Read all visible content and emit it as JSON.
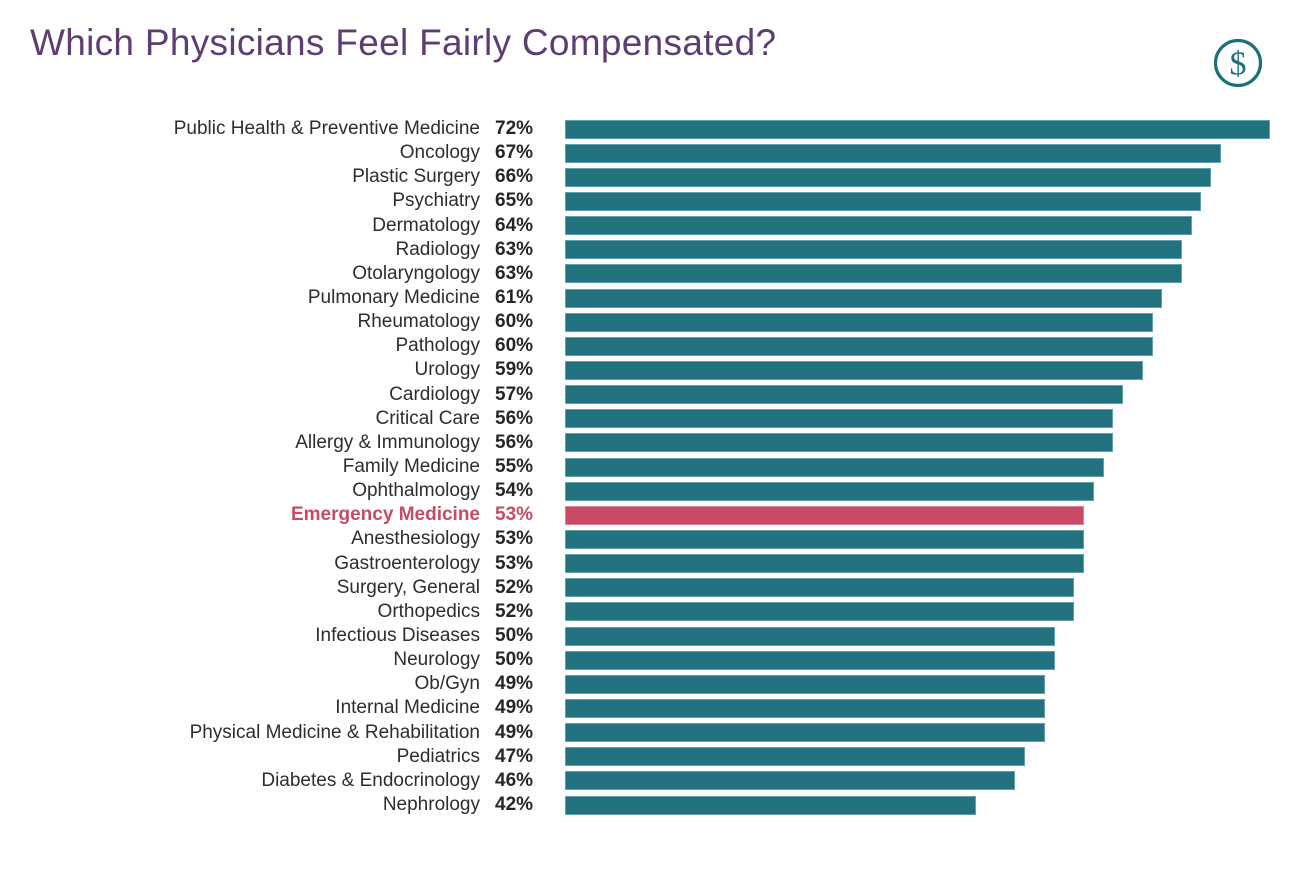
{
  "page": {
    "background": "#ffffff"
  },
  "header": {
    "title": "Which Physicians Feel Fairly Compensated?",
    "title_color": "#5e3d72",
    "icon": "dollar-circle-icon",
    "icon_glyph": "$",
    "icon_color": "#1d6f7b"
  },
  "chart_data": {
    "type": "bar",
    "orientation": "horizontal",
    "title": "Which Physicians Feel Fairly Compensated?",
    "xlabel": "",
    "ylabel": "",
    "xlim": [
      0,
      72
    ],
    "grid": false,
    "legend": false,
    "bar_color": "#22717e",
    "highlight_color": "#c84a64",
    "label_color": "#2d2d2d",
    "highlight_category": "Emergency Medicine",
    "highlight_index": 16,
    "categories": [
      "Public Health & Preventive Medicine",
      "Oncology",
      "Plastic Surgery",
      "Psychiatry",
      "Dermatology",
      "Radiology",
      "Otolaryngology",
      "Pulmonary Medicine",
      "Rheumatology",
      "Pathology",
      "Urology",
      "Cardiology",
      "Critical Care",
      "Allergy & Immunology",
      "Family Medicine",
      "Ophthalmology",
      "Emergency Medicine",
      "Anesthesiology",
      "Gastroenterology",
      "Surgery, General",
      "Orthopedics",
      "Infectious Diseases",
      "Neurology",
      "Ob/Gyn",
      "Internal Medicine",
      "Physical Medicine & Rehabilitation",
      "Pediatrics",
      "Diabetes & Endocrinology",
      "Nephrology"
    ],
    "values": [
      72,
      67,
      66,
      65,
      64,
      63,
      63,
      61,
      60,
      60,
      59,
      57,
      56,
      56,
      55,
      54,
      53,
      53,
      53,
      52,
      52,
      50,
      50,
      49,
      49,
      49,
      47,
      46,
      42
    ],
    "value_labels": [
      "72%",
      "67%",
      "66%",
      "65%",
      "64%",
      "63%",
      "63%",
      "61%",
      "60%",
      "60%",
      "59%",
      "57%",
      "56%",
      "56%",
      "55%",
      "54%",
      "53%",
      "53%",
      "53%",
      "52%",
      "52%",
      "50%",
      "50%",
      "49%",
      "49%",
      "49%",
      "47%",
      "46%",
      "42%"
    ]
  }
}
